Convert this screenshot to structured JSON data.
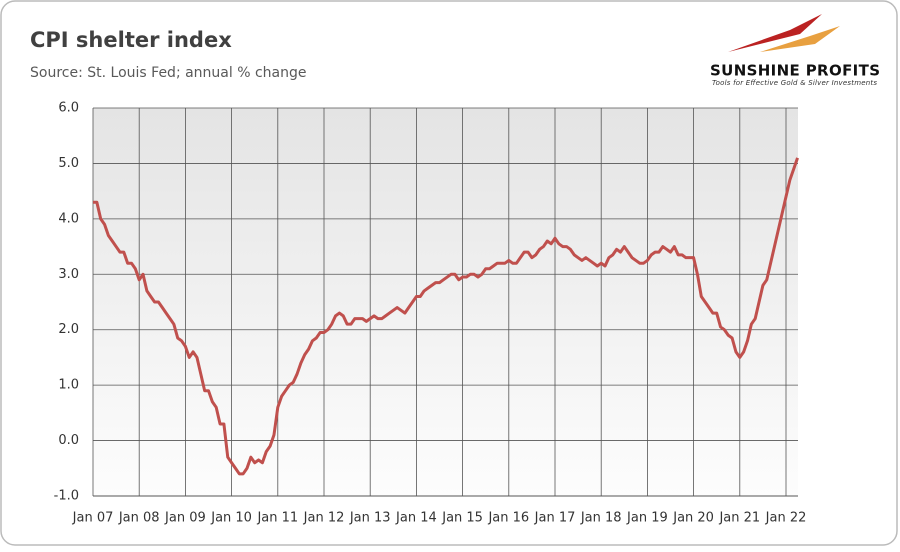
{
  "chart_data": {
    "type": "line",
    "title": "CPI shelter index",
    "subtitle": "Source: St. Louis Fed; annual % change",
    "x": [
      "2007-01",
      "2007-02",
      "2007-03",
      "2007-04",
      "2007-05",
      "2007-06",
      "2007-07",
      "2007-08",
      "2007-09",
      "2007-10",
      "2007-11",
      "2007-12",
      "2008-01",
      "2008-02",
      "2008-03",
      "2008-04",
      "2008-05",
      "2008-06",
      "2008-07",
      "2008-08",
      "2008-09",
      "2008-10",
      "2008-11",
      "2008-12",
      "2009-01",
      "2009-02",
      "2009-03",
      "2009-04",
      "2009-05",
      "2009-06",
      "2009-07",
      "2009-08",
      "2009-09",
      "2009-10",
      "2009-11",
      "2009-12",
      "2010-01",
      "2010-02",
      "2010-03",
      "2010-04",
      "2010-05",
      "2010-06",
      "2010-07",
      "2010-08",
      "2010-09",
      "2010-10",
      "2010-11",
      "2010-12",
      "2011-01",
      "2011-02",
      "2011-03",
      "2011-04",
      "2011-05",
      "2011-06",
      "2011-07",
      "2011-08",
      "2011-09",
      "2011-10",
      "2011-11",
      "2011-12",
      "2012-01",
      "2012-02",
      "2012-03",
      "2012-04",
      "2012-05",
      "2012-06",
      "2012-07",
      "2012-08",
      "2012-09",
      "2012-10",
      "2012-11",
      "2012-12",
      "2013-01",
      "2013-02",
      "2013-03",
      "2013-04",
      "2013-05",
      "2013-06",
      "2013-07",
      "2013-08",
      "2013-09",
      "2013-10",
      "2013-11",
      "2013-12",
      "2014-01",
      "2014-02",
      "2014-03",
      "2014-04",
      "2014-05",
      "2014-06",
      "2014-07",
      "2014-08",
      "2014-09",
      "2014-10",
      "2014-11",
      "2014-12",
      "2015-01",
      "2015-02",
      "2015-03",
      "2015-04",
      "2015-05",
      "2015-06",
      "2015-07",
      "2015-08",
      "2015-09",
      "2015-10",
      "2015-11",
      "2015-12",
      "2016-01",
      "2016-02",
      "2016-03",
      "2016-04",
      "2016-05",
      "2016-06",
      "2016-07",
      "2016-08",
      "2016-09",
      "2016-10",
      "2016-11",
      "2016-12",
      "2017-01",
      "2017-02",
      "2017-03",
      "2017-04",
      "2017-05",
      "2017-06",
      "2017-07",
      "2017-08",
      "2017-09",
      "2017-10",
      "2017-11",
      "2017-12",
      "2018-01",
      "2018-02",
      "2018-03",
      "2018-04",
      "2018-05",
      "2018-06",
      "2018-07",
      "2018-08",
      "2018-09",
      "2018-10",
      "2018-11",
      "2018-12",
      "2019-01",
      "2019-02",
      "2019-03",
      "2019-04",
      "2019-05",
      "2019-06",
      "2019-07",
      "2019-08",
      "2019-09",
      "2019-10",
      "2019-11",
      "2019-12",
      "2020-01",
      "2020-02",
      "2020-03",
      "2020-04",
      "2020-05",
      "2020-06",
      "2020-07",
      "2020-08",
      "2020-09",
      "2020-10",
      "2020-11",
      "2020-12",
      "2021-01",
      "2021-02",
      "2021-03",
      "2021-04",
      "2021-05",
      "2021-06",
      "2021-07",
      "2021-08",
      "2021-09",
      "2021-10",
      "2021-11",
      "2021-12",
      "2022-01",
      "2022-02",
      "2022-03",
      "2022-04"
    ],
    "series": [
      {
        "name": "CPI shelter",
        "color": "#c0504d",
        "values": [
          4.3,
          4.3,
          4.0,
          3.9,
          3.7,
          3.6,
          3.5,
          3.4,
          3.4,
          3.2,
          3.2,
          3.1,
          2.9,
          3.0,
          2.7,
          2.6,
          2.5,
          2.5,
          2.4,
          2.3,
          2.2,
          2.1,
          1.85,
          1.8,
          1.7,
          1.5,
          1.6,
          1.5,
          1.2,
          0.9,
          0.9,
          0.7,
          0.6,
          0.3,
          0.3,
          -0.3,
          -0.4,
          -0.5,
          -0.6,
          -0.6,
          -0.5,
          -0.3,
          -0.4,
          -0.35,
          -0.4,
          -0.2,
          -0.1,
          0.1,
          0.6,
          0.8,
          0.9,
          1.0,
          1.05,
          1.2,
          1.4,
          1.55,
          1.65,
          1.8,
          1.85,
          1.95,
          1.95,
          2.0,
          2.1,
          2.25,
          2.3,
          2.25,
          2.1,
          2.1,
          2.2,
          2.2,
          2.2,
          2.15,
          2.2,
          2.25,
          2.2,
          2.2,
          2.25,
          2.3,
          2.35,
          2.4,
          2.35,
          2.3,
          2.4,
          2.5,
          2.6,
          2.6,
          2.7,
          2.75,
          2.8,
          2.85,
          2.85,
          2.9,
          2.95,
          3.0,
          3.0,
          2.9,
          2.95,
          2.95,
          3.0,
          3.0,
          2.95,
          3.0,
          3.1,
          3.1,
          3.15,
          3.2,
          3.2,
          3.2,
          3.25,
          3.2,
          3.2,
          3.3,
          3.4,
          3.4,
          3.3,
          3.35,
          3.45,
          3.5,
          3.6,
          3.55,
          3.65,
          3.55,
          3.5,
          3.5,
          3.45,
          3.35,
          3.3,
          3.25,
          3.3,
          3.25,
          3.2,
          3.15,
          3.2,
          3.15,
          3.3,
          3.35,
          3.45,
          3.4,
          3.5,
          3.4,
          3.3,
          3.25,
          3.2,
          3.2,
          3.25,
          3.35,
          3.4,
          3.4,
          3.5,
          3.45,
          3.4,
          3.5,
          3.35,
          3.35,
          3.3,
          3.3,
          3.3,
          3.0,
          2.6,
          2.5,
          2.4,
          2.3,
          2.3,
          2.05,
          2.0,
          1.9,
          1.85,
          1.6,
          1.5,
          1.6,
          1.8,
          2.1,
          2.2,
          2.5,
          2.8,
          2.9,
          3.2,
          3.5,
          3.8,
          4.1,
          4.4,
          4.7,
          4.9,
          5.1
        ]
      }
    ],
    "xticks": [
      {
        "value": "2007-01",
        "label": "Jan 07"
      },
      {
        "value": "2008-01",
        "label": "Jan 08"
      },
      {
        "value": "2009-01",
        "label": "Jan 09"
      },
      {
        "value": "2010-01",
        "label": "Jan 10"
      },
      {
        "value": "2011-01",
        "label": "Jan 11"
      },
      {
        "value": "2012-01",
        "label": "Jan 12"
      },
      {
        "value": "2013-01",
        "label": "Jan 13"
      },
      {
        "value": "2014-01",
        "label": "Jan 14"
      },
      {
        "value": "2015-01",
        "label": "Jan 15"
      },
      {
        "value": "2016-01",
        "label": "Jan 16"
      },
      {
        "value": "2017-01",
        "label": "Jan 17"
      },
      {
        "value": "2018-01",
        "label": "Jan 18"
      },
      {
        "value": "2019-01",
        "label": "Jan 19"
      },
      {
        "value": "2020-01",
        "label": "Jan 20"
      },
      {
        "value": "2021-01",
        "label": "Jan 21"
      },
      {
        "value": "2022-01",
        "label": "Jan 22"
      }
    ],
    "ylim": [
      -1,
      6
    ],
    "yticks": [
      {
        "value": -1,
        "label": "-1.0"
      },
      {
        "value": 0,
        "label": "0.0"
      },
      {
        "value": 1,
        "label": "1.0"
      },
      {
        "value": 2,
        "label": "2.0"
      },
      {
        "value": 3,
        "label": "3.0"
      },
      {
        "value": 4,
        "label": "4.0"
      },
      {
        "value": 5,
        "label": "5.0"
      },
      {
        "value": 6,
        "label": "6.0"
      }
    ],
    "grid": true
  },
  "logo": {
    "name": "SUNSHINE PROFITS",
    "tagline": "Tools for Effective Gold & Silver Investments"
  }
}
